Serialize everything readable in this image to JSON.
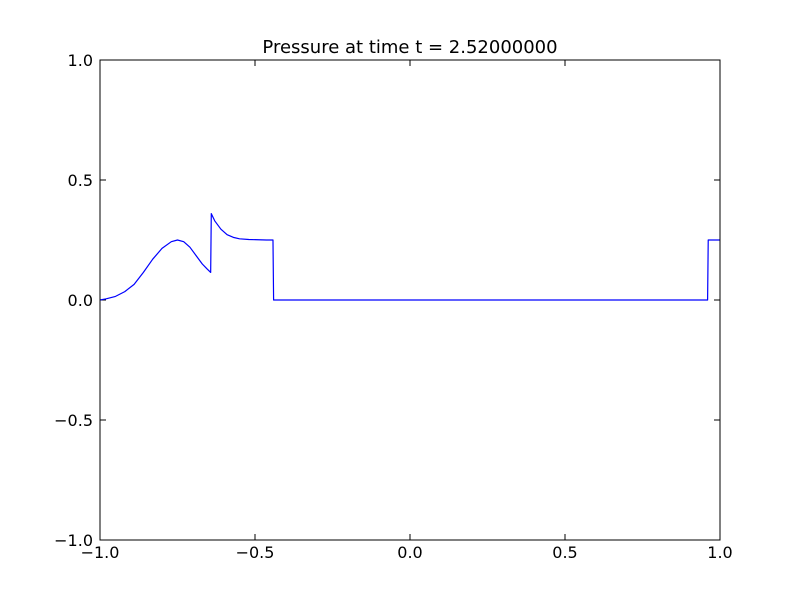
{
  "chart_data": {
    "type": "line",
    "title": "Pressure at time t =     2.52000000",
    "xlabel": "",
    "ylabel": "",
    "xlim": [
      -1.0,
      1.0
    ],
    "ylim": [
      -1.0,
      1.0
    ],
    "xticks": [
      -1.0,
      -0.5,
      0.0,
      0.5,
      1.0
    ],
    "xtick_labels": [
      "−1.0",
      "−0.5",
      "0.0",
      "0.5",
      "1.0"
    ],
    "yticks": [
      -1.0,
      -0.5,
      0.0,
      0.5,
      1.0
    ],
    "ytick_labels": [
      "−1.0",
      "−0.5",
      "0.0",
      "0.5",
      "1.0"
    ],
    "grid": false,
    "series": [
      {
        "color": "#0000ff",
        "x": [
          -1.0,
          -0.98,
          -0.95,
          -0.92,
          -0.89,
          -0.86,
          -0.83,
          -0.8,
          -0.77,
          -0.75,
          -0.73,
          -0.71,
          -0.69,
          -0.67,
          -0.655,
          -0.643,
          -0.641,
          -0.63,
          -0.61,
          -0.59,
          -0.57,
          -0.55,
          -0.52,
          -0.49,
          -0.463,
          -0.442,
          -0.44,
          -0.42,
          0.0,
          0.5,
          0.96,
          0.962,
          0.98,
          1.0
        ],
        "y": [
          0.0,
          0.005,
          0.015,
          0.035,
          0.065,
          0.115,
          0.17,
          0.215,
          0.243,
          0.25,
          0.243,
          0.22,
          0.185,
          0.15,
          0.13,
          0.115,
          0.36,
          0.33,
          0.295,
          0.272,
          0.261,
          0.255,
          0.252,
          0.251,
          0.25,
          0.25,
          0.0,
          0.0,
          0.0,
          0.0,
          0.0,
          0.25,
          0.25,
          0.25
        ]
      }
    ]
  }
}
